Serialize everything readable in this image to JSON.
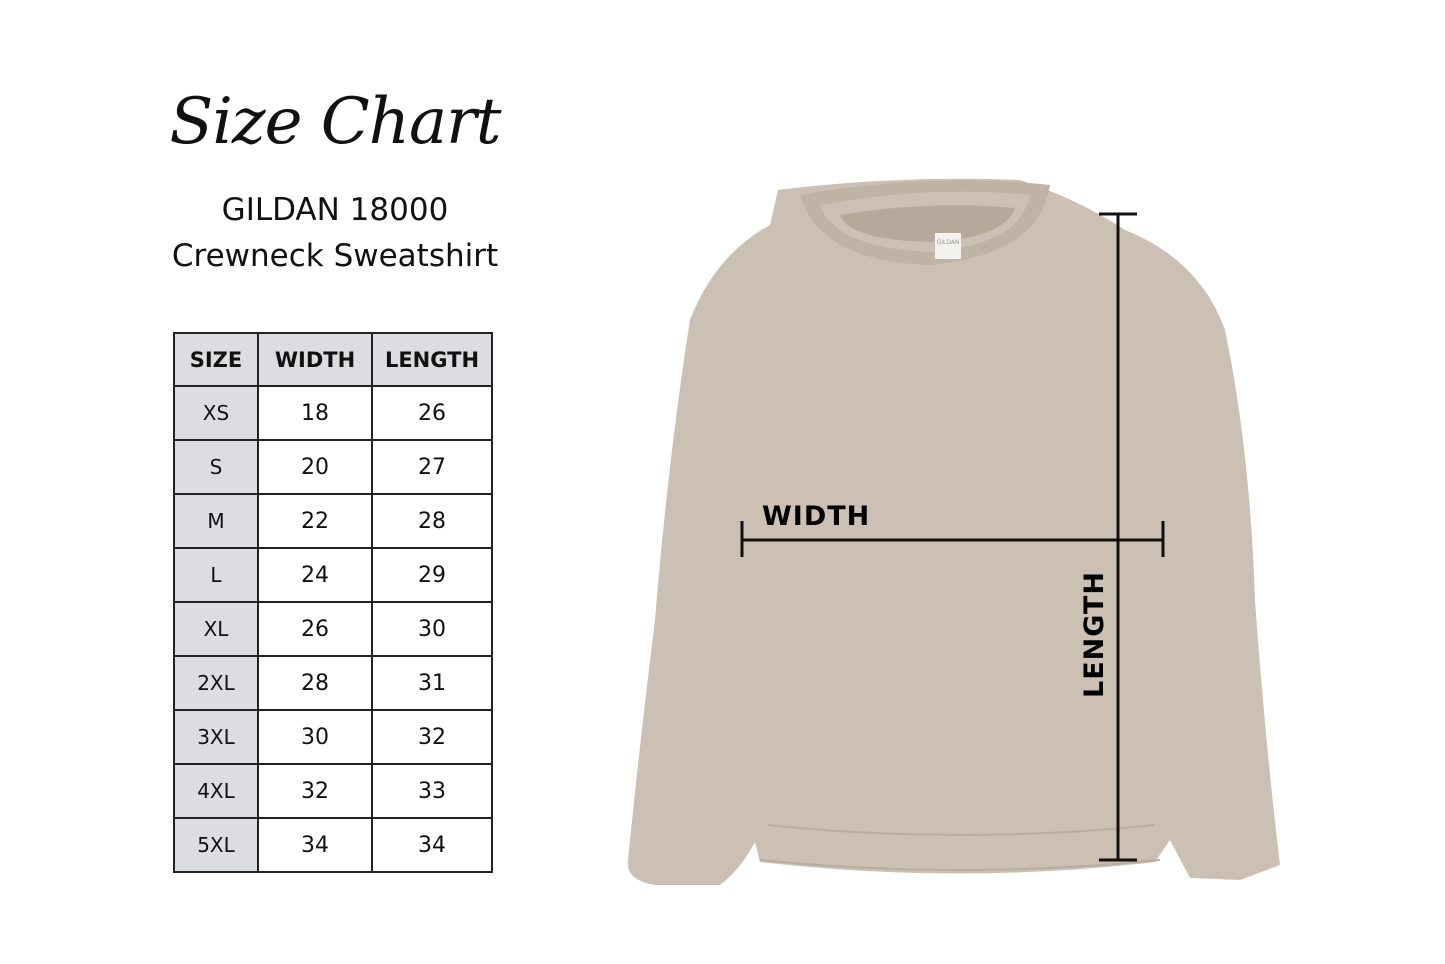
{
  "header": {
    "title": "Size Chart",
    "product": "GILDAN 18000",
    "style": "Crewneck Sweatshirt"
  },
  "table": {
    "columns": [
      "SIZE",
      "WIDTH",
      "LENGTH"
    ],
    "rows": [
      {
        "size": "XS",
        "width": "18",
        "length": "26"
      },
      {
        "size": "S",
        "width": "20",
        "length": "27"
      },
      {
        "size": "M",
        "width": "22",
        "length": "28"
      },
      {
        "size": "L",
        "width": "24",
        "length": "29"
      },
      {
        "size": "XL",
        "width": "26",
        "length": "30"
      },
      {
        "size": "2XL",
        "width": "28",
        "length": "31"
      },
      {
        "size": "3XL",
        "width": "30",
        "length": "32"
      },
      {
        "size": "4XL",
        "width": "32",
        "length": "33"
      },
      {
        "size": "5XL",
        "width": "34",
        "length": "34"
      }
    ]
  },
  "diagram": {
    "width_label": "WIDTH",
    "length_label": "LENGTH",
    "tag_logo": "GILDAN",
    "garment_color": "#cbc0b3"
  }
}
